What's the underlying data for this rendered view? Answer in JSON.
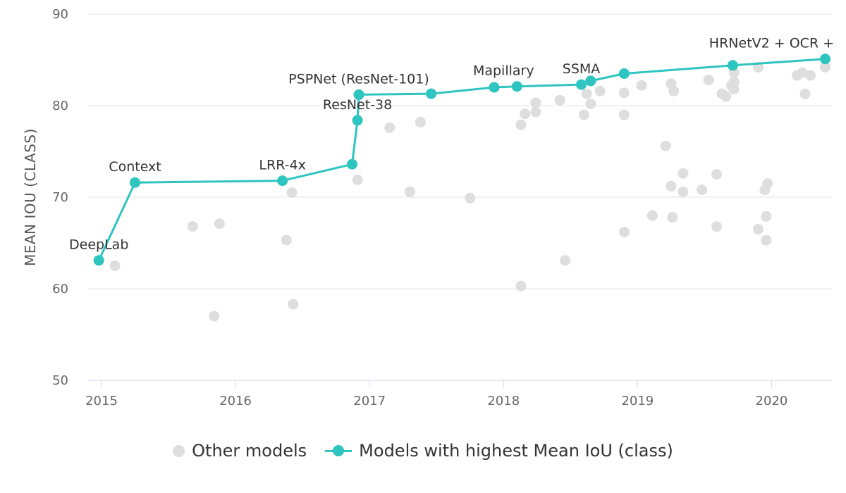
{
  "chart_data": {
    "type": "scatter",
    "title": "",
    "xlabel": "",
    "ylabel": "MEAN IOU (CLASS)",
    "xlim": [
      2014.9,
      2020.45
    ],
    "ylim": [
      50,
      90
    ],
    "x_ticks": [
      "2015",
      "2016",
      "2017",
      "2018",
      "2019",
      "2020"
    ],
    "y_ticks": [
      "50",
      "60",
      "70",
      "80",
      "90"
    ],
    "grid": true,
    "legend_position": "bottom",
    "colors": {
      "other": "#dedede",
      "sota": "#2ec4c0",
      "grid": "#e6e6e6"
    },
    "series": [
      {
        "name": "Other models",
        "kind": "scatter",
        "points": [
          [
            2015.1,
            62.5
          ],
          [
            2015.68,
            66.8
          ],
          [
            2015.84,
            57.0
          ],
          [
            2015.88,
            67.1
          ],
          [
            2016.38,
            65.3
          ],
          [
            2016.42,
            70.5
          ],
          [
            2016.43,
            58.3
          ],
          [
            2016.91,
            71.9
          ],
          [
            2017.15,
            77.6
          ],
          [
            2017.3,
            70.6
          ],
          [
            2017.38,
            78.2
          ],
          [
            2017.75,
            69.9
          ],
          [
            2018.13,
            77.9
          ],
          [
            2018.13,
            60.3
          ],
          [
            2018.16,
            79.1
          ],
          [
            2018.24,
            80.3
          ],
          [
            2018.24,
            79.3
          ],
          [
            2018.42,
            80.6
          ],
          [
            2018.46,
            63.1
          ],
          [
            2018.6,
            79.0
          ],
          [
            2018.62,
            81.3
          ],
          [
            2018.65,
            80.2
          ],
          [
            2018.72,
            81.6
          ],
          [
            2018.9,
            81.4
          ],
          [
            2018.9,
            79.0
          ],
          [
            2018.9,
            66.2
          ],
          [
            2019.03,
            82.2
          ],
          [
            2019.11,
            68.0
          ],
          [
            2019.21,
            75.6
          ],
          [
            2019.25,
            82.4
          ],
          [
            2019.25,
            71.2
          ],
          [
            2019.26,
            67.8
          ],
          [
            2019.27,
            81.6
          ],
          [
            2019.34,
            72.6
          ],
          [
            2019.34,
            70.6
          ],
          [
            2019.48,
            70.8
          ],
          [
            2019.53,
            82.8
          ],
          [
            2019.59,
            72.5
          ],
          [
            2019.59,
            66.8
          ],
          [
            2019.63,
            81.3
          ],
          [
            2019.66,
            81.0
          ],
          [
            2019.7,
            82.2
          ],
          [
            2019.72,
            83.6
          ],
          [
            2019.72,
            81.8
          ],
          [
            2019.72,
            82.6
          ],
          [
            2019.9,
            84.2
          ],
          [
            2019.9,
            66.5
          ],
          [
            2019.95,
            70.8
          ],
          [
            2019.96,
            67.9
          ],
          [
            2019.96,
            65.3
          ],
          [
            2019.97,
            71.5
          ],
          [
            2020.19,
            83.3
          ],
          [
            2020.23,
            83.6
          ],
          [
            2020.25,
            81.3
          ],
          [
            2020.29,
            83.3
          ],
          [
            2020.4,
            84.2
          ]
        ]
      },
      {
        "name": "Models with highest Mean IoU (class)",
        "kind": "line",
        "points": [
          [
            2014.98,
            63.1
          ],
          [
            2015.25,
            71.6
          ],
          [
            2016.35,
            71.8
          ],
          [
            2016.87,
            73.6
          ],
          [
            2016.91,
            78.4
          ],
          [
            2016.92,
            81.2
          ],
          [
            2017.46,
            81.3
          ],
          [
            2017.93,
            82.0
          ],
          [
            2018.1,
            82.1
          ],
          [
            2018.58,
            82.3
          ],
          [
            2018.65,
            82.7
          ],
          [
            2018.9,
            83.5
          ],
          [
            2019.71,
            84.4
          ],
          [
            2020.4,
            85.1
          ]
        ]
      }
    ],
    "annotations": [
      {
        "text": "DeepLab",
        "x": 2014.98,
        "y": 63.1
      },
      {
        "text": "Context",
        "x": 2015.25,
        "y": 71.6
      },
      {
        "text": "LRR-4x",
        "x": 2016.35,
        "y": 71.8
      },
      {
        "text": "ResNet-38",
        "x": 2016.91,
        "y": 78.4
      },
      {
        "text": "PSPNet (ResNet-101)",
        "x": 2016.92,
        "y": 81.2
      },
      {
        "text": "Mapillary",
        "x": 2018.0,
        "y": 82.1
      },
      {
        "text": "SSMA",
        "x": 2018.58,
        "y": 82.3
      },
      {
        "text": "HRNetV2 + OCR +",
        "x": 2020.0,
        "y": 85.1
      }
    ]
  },
  "legend": {
    "other_label": "Other models",
    "sota_label": "Models with highest Mean IoU (class)"
  }
}
